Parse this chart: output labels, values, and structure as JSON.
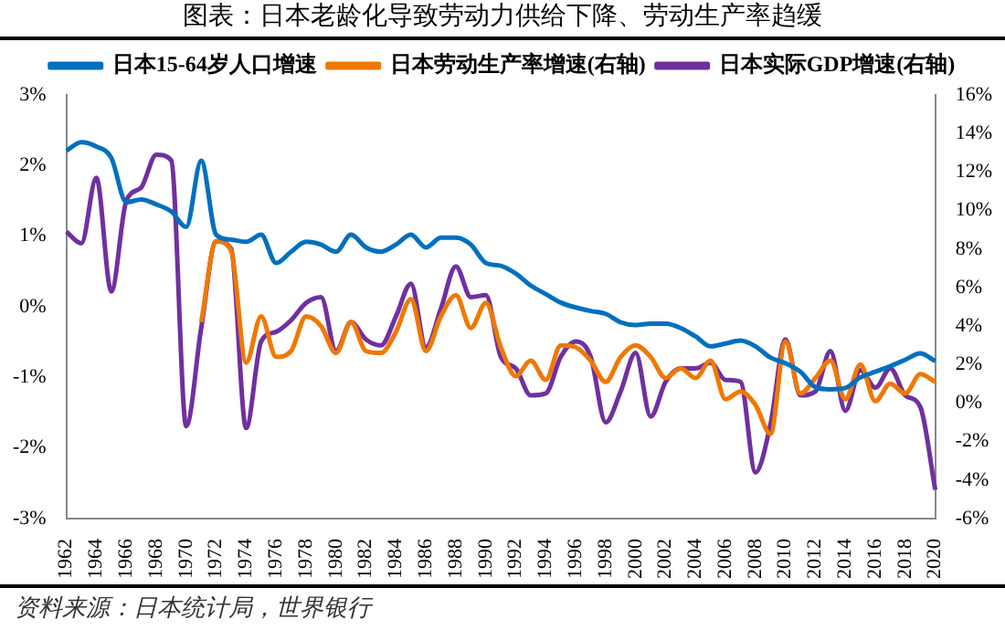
{
  "chart_data": {
    "type": "line",
    "title": "图表：日本老龄化导致劳动力供给下降、劳动生产率趋缓",
    "annotations": [
      "资料来源：日本统计局，世界银行"
    ],
    "categories": [
      "1962",
      null,
      "1964",
      null,
      "1966",
      null,
      "1968",
      null,
      "1970",
      null,
      "1972",
      null,
      "1974",
      null,
      "1976",
      null,
      "1978",
      null,
      "1980",
      null,
      "1982",
      null,
      "1984",
      null,
      "1986",
      null,
      "1988",
      null,
      "1990",
      null,
      "1992",
      null,
      "1994",
      null,
      "1996",
      null,
      "1998",
      null,
      "2000",
      null,
      "2002",
      null,
      "2004",
      null,
      "2006",
      null,
      "2008",
      null,
      "2010",
      null,
      "2012",
      null,
      "2014",
      null,
      "2016",
      null,
      "2018",
      null,
      "2020"
    ],
    "series": [
      {
        "name": "日本15-64岁人口增速",
        "color": "#0070c0",
        "values": [
          2.21,
          2.33,
          2.27,
          2.11,
          1.48,
          1.52,
          1.45,
          1.35,
          1.13,
          2.07,
          1.02,
          0.95,
          0.92,
          1.02,
          0.62,
          0.78,
          0.92,
          0.88,
          0.78,
          1.02,
          0.84,
          0.78,
          0.88,
          1.02,
          0.84,
          0.98,
          0.98,
          0.88,
          0.62,
          0.58,
          0.47,
          0.3,
          0.18,
          0.06,
          -0.01,
          -0.06,
          -0.1,
          -0.22,
          -0.26,
          -0.24,
          -0.24,
          -0.3,
          -0.42,
          -0.56,
          -0.52,
          -0.48,
          -0.56,
          -0.72,
          -0.8,
          -0.92,
          -1.14,
          -1.17,
          -1.15,
          -1.0,
          -0.92,
          -0.84,
          -0.75,
          -0.66,
          -0.77
        ]
      },
      {
        "name": "日本劳动生产率增速(右轴)",
        "color": "#f07800",
        "axis": "y2",
        "values": [
          null,
          null,
          null,
          null,
          null,
          null,
          null,
          null,
          null,
          4.2,
          8.4,
          7.9,
          2.1,
          4.5,
          2.4,
          2.7,
          4.5,
          4.0,
          2.6,
          4.2,
          2.7,
          2.6,
          3.7,
          5.4,
          2.7,
          4.5,
          5.6,
          3.9,
          5.2,
          2.9,
          1.4,
          2.2,
          1.2,
          3.0,
          2.9,
          2.2,
          1.1,
          2.4,
          3.0,
          2.4,
          1.3,
          1.8,
          1.3,
          2.2,
          0.2,
          0.6,
          -0.1,
          -1.6,
          3.2,
          0.5,
          1.3,
          2.2,
          0.2,
          2.0,
          0.1,
          1.0,
          0.5,
          1.5,
          1.1
        ]
      },
      {
        "name": "日本实际GDP增速(右轴)",
        "color": "#7030a0",
        "axis": "y2",
        "values": [
          8.9,
          8.3,
          11.7,
          5.8,
          10.5,
          11.2,
          12.9,
          12.6,
          -1.2,
          3.9,
          8.4,
          8.0,
          -1.3,
          3.2,
          3.7,
          4.3,
          5.2,
          5.5,
          2.7,
          4.2,
          3.3,
          3.0,
          4.5,
          6.2,
          2.9,
          4.9,
          7.1,
          5.5,
          5.6,
          2.4,
          1.8,
          0.4,
          0.5,
          2.4,
          3.2,
          2.4,
          -1.0,
          0.6,
          2.6,
          -0.7,
          1.1,
          1.8,
          1.8,
          2.1,
          1.2,
          1.1,
          -3.6,
          -1.1,
          3.3,
          0.4,
          0.6,
          2.7,
          -0.4,
          1.7,
          0.8,
          1.8,
          0.4,
          -0.2,
          -4.5
        ]
      }
    ],
    "ylim": [
      -3,
      3
    ],
    "yticks": [
      {
        "value": -3,
        "label": "-3%"
      },
      {
        "value": -2,
        "label": "-2%"
      },
      {
        "value": -1,
        "label": "-1%"
      },
      {
        "value": 0,
        "label": "0%"
      },
      {
        "value": 1,
        "label": "1%"
      },
      {
        "value": 2,
        "label": "2%"
      },
      {
        "value": 3,
        "label": "3%"
      }
    ],
    "y2lim": [
      -6,
      16
    ],
    "y2ticks": [
      {
        "value": -6,
        "label": "-6%"
      },
      {
        "value": -4,
        "label": "-4%"
      },
      {
        "value": -2,
        "label": "-2%"
      },
      {
        "value": 0,
        "label": "0%"
      },
      {
        "value": 2,
        "label": "2%"
      },
      {
        "value": 4,
        "label": "4%"
      },
      {
        "value": 6,
        "label": "6%"
      },
      {
        "value": 8,
        "label": "8%"
      },
      {
        "value": 10,
        "label": "10%"
      },
      {
        "value": 12,
        "label": "12%"
      },
      {
        "value": 14,
        "label": "14%"
      },
      {
        "value": 16,
        "label": "16%"
      }
    ],
    "legend": "top",
    "grid": false
  }
}
